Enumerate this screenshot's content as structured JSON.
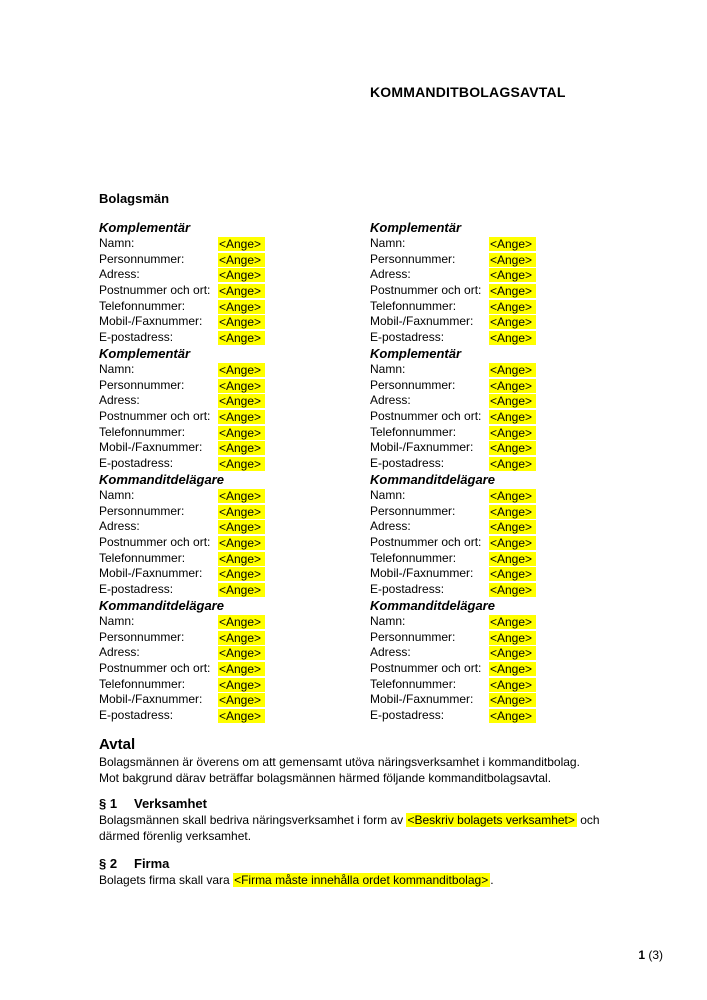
{
  "colors": {
    "highlight": "#FFFF00",
    "text": "#000000",
    "background": "#FFFFFF"
  },
  "document": {
    "title": "KOMMANDITBOLAGSAVTAL",
    "bolagsman_heading": "Bolagsmän",
    "field_labels": [
      "Namn:",
      "Personnummer:",
      "Adress:",
      "Postnummer och ort:",
      "Telefonnummer:",
      "Mobil-/Faxnummer:",
      "E-postadress:"
    ],
    "placeholder": "<Ange>",
    "blocks": [
      {
        "heading": "Komplementär"
      },
      {
        "heading": "Komplementär"
      },
      {
        "heading": "Komplementär"
      },
      {
        "heading": "Komplementär"
      },
      {
        "heading": "Kommanditdelägare"
      },
      {
        "heading": "Kommanditdelägare"
      },
      {
        "heading": "Kommanditdelägare"
      },
      {
        "heading": "Kommanditdelägare"
      }
    ],
    "avtal": {
      "heading": "Avtal",
      "line1": "Bolagsmännen är överens om att gemensamt utöva näringsverksamhet i kommanditbolag.",
      "line2": "Mot bakgrund därav beträffar bolagsmännen härmed följande kommanditbolagsavtal."
    },
    "paragraph1": {
      "number": "§ 1",
      "heading": "Verksamhet",
      "line1_before": "Bolagsmännen skall bedriva näringsverksamhet i form av ",
      "line1_highlight": "<Beskriv bolagets verksamhet>",
      "line1_after": " och",
      "line2": "därmed förenlig verksamhet."
    },
    "paragraph2": {
      "number": "§ 2",
      "heading": "Firma",
      "line_before": "Bolagets firma skall vara ",
      "highlight": "<Firma måste innehålla ordet kommanditbolag>",
      "line_after": "."
    },
    "page_number": {
      "current": "1",
      "total": " (3)"
    }
  }
}
